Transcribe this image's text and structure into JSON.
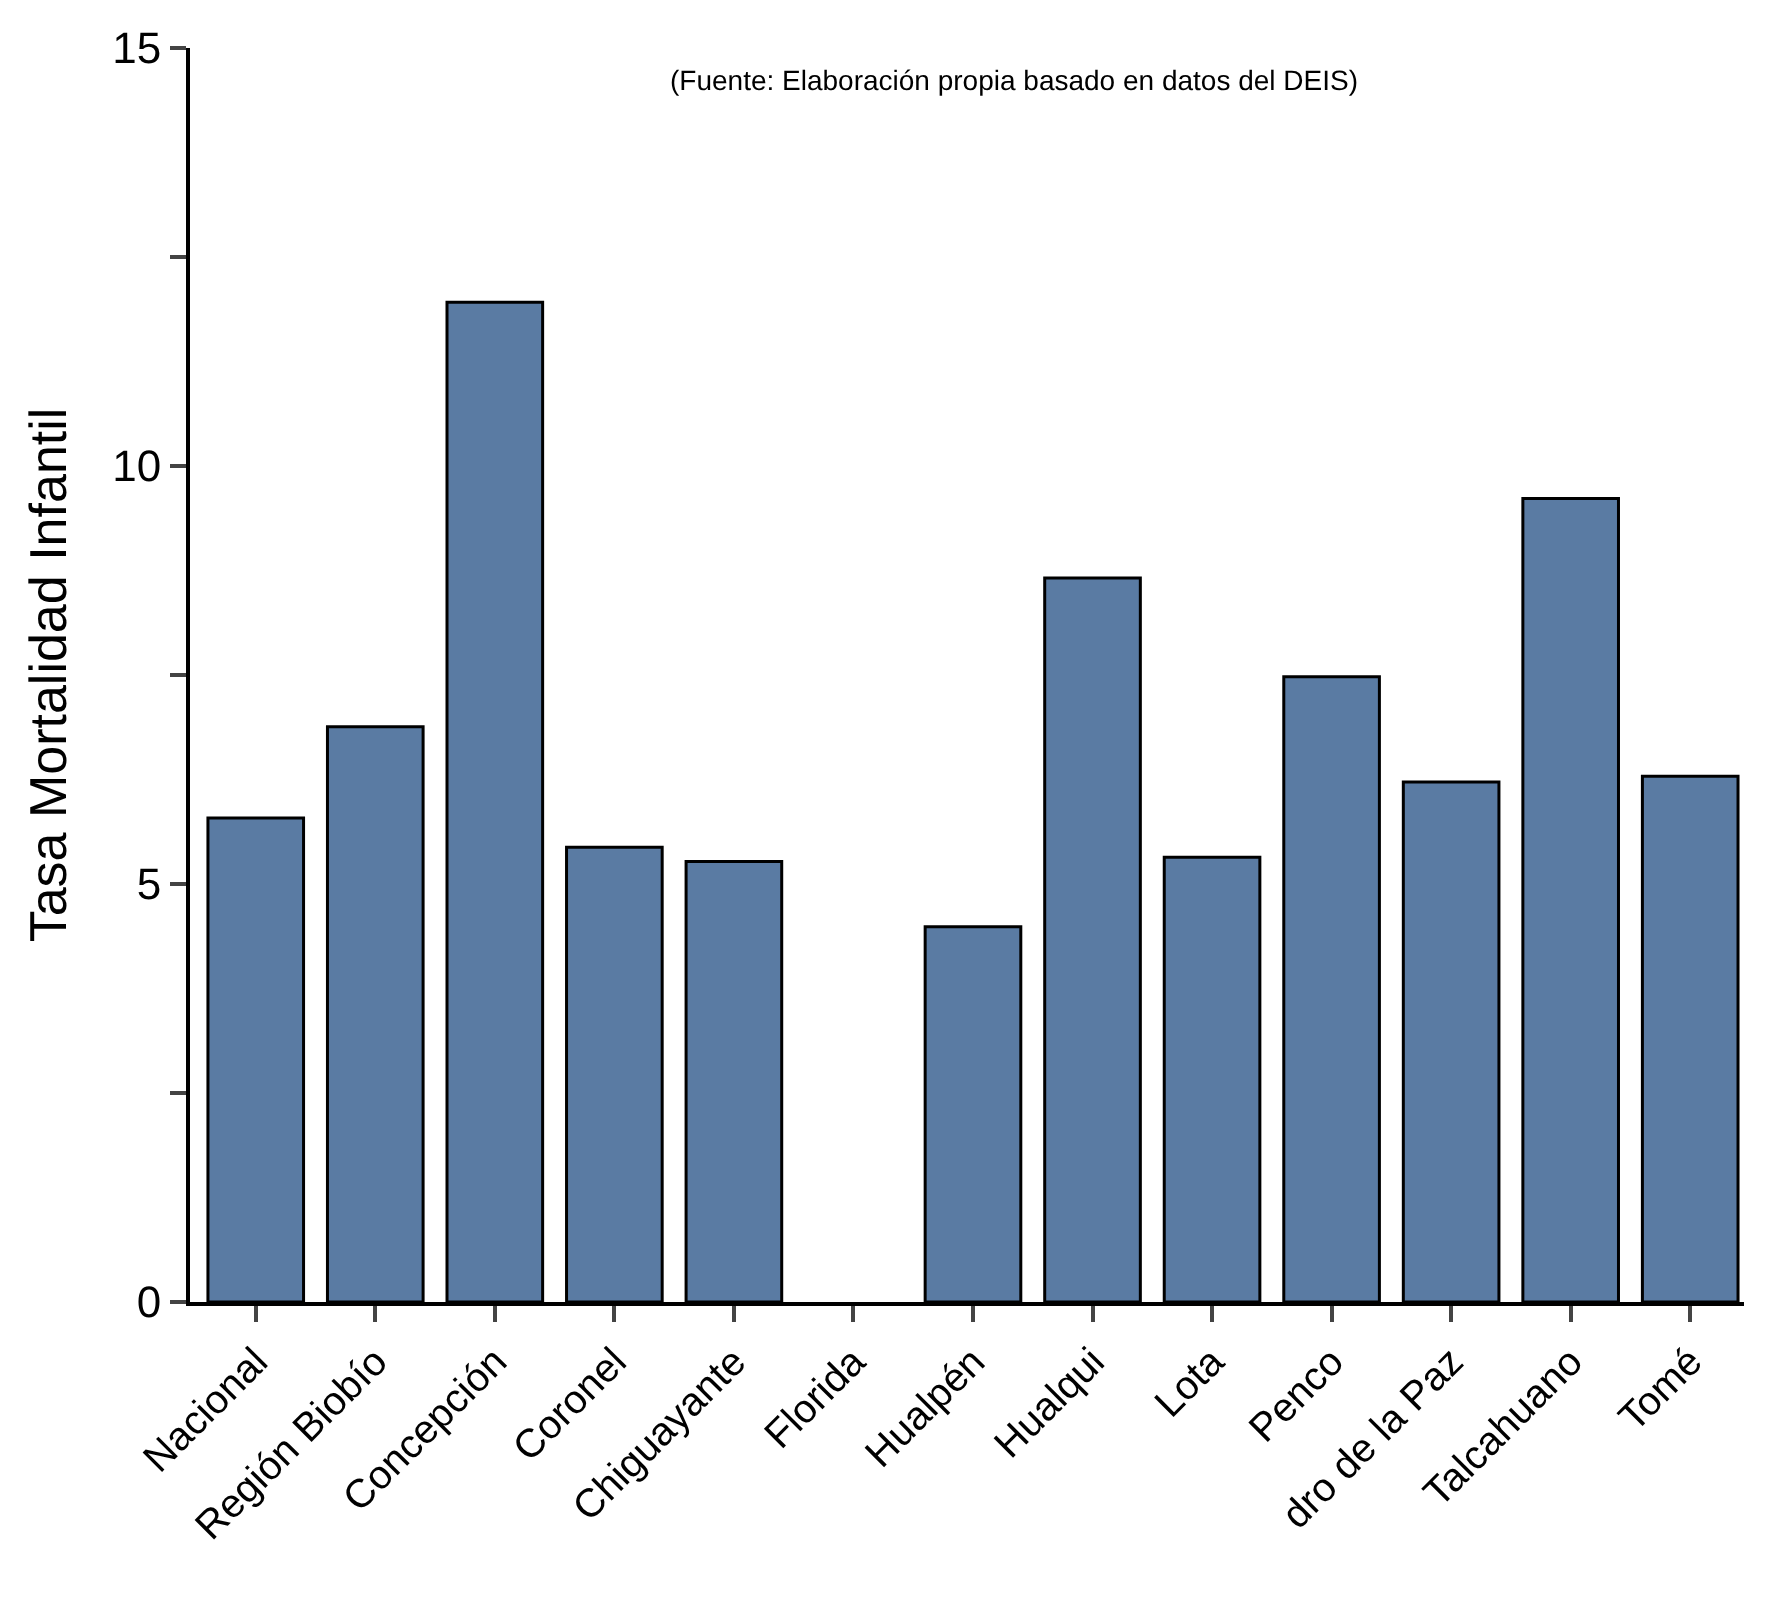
{
  "chart_data": {
    "type": "bar",
    "categories": [
      "Nacional",
      "Región Biobío",
      "Concepción",
      "Coronel",
      "Chiguayante",
      "Florida",
      "Hualpén",
      "Hualqui",
      "Lota",
      "Penco",
      "dro de la Paz",
      "Talcahuano",
      "Tomé"
    ],
    "values": [
      5.79,
      6.88,
      11.96,
      5.44,
      5.27,
      null,
      4.49,
      8.66,
      5.32,
      7.48,
      6.22,
      9.61,
      6.29
    ],
    "color": "#5a7ba3",
    "ylabel": "Tasa Mortalidad Infantil",
    "ylim": [
      0,
      15
    ],
    "yticks": [
      0,
      {
        "value": 2.5,
        "label": null
      },
      5,
      {
        "value": 7.5,
        "label": null
      },
      10,
      {
        "value": 12.5,
        "label": null
      },
      15
    ],
    "annotations": [
      "(Fuente: Elaboración propia basado en datos del DEIS)"
    ]
  }
}
